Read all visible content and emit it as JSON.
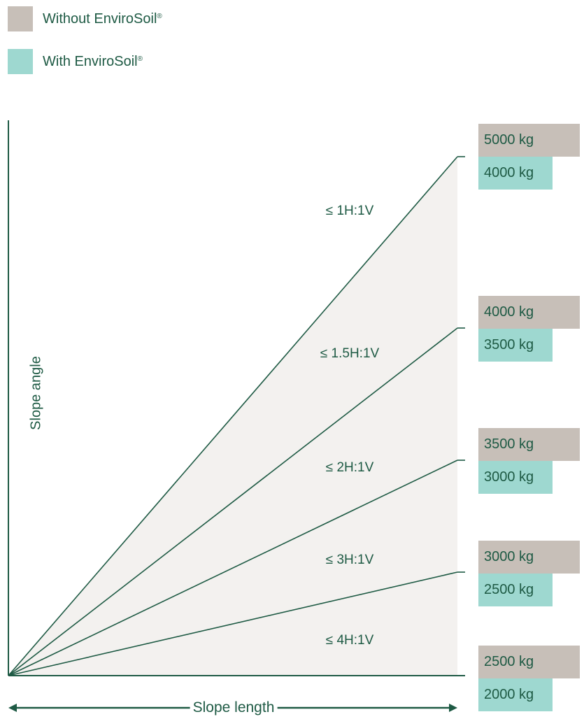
{
  "legend": [
    {
      "label": "Without EnviroSoil",
      "mark": "®",
      "color": "#c7bfb8"
    },
    {
      "label": "With EnviroSoil",
      "mark": "®",
      "color": "#9ed8d0"
    }
  ],
  "colors": {
    "line": "#1e5a44",
    "shade": "#f3f1ef",
    "without": "#c7bfb8",
    "with": "#9ed8d0"
  },
  "chart_data": {
    "type": "line",
    "xlabel": "Slope length",
    "ylabel": "Slope angle",
    "slopes": [
      {
        "label": "≤ 1H:1V",
        "ratio": 1,
        "without_label": "5000 kg",
        "with_label": "4000 kg",
        "without_kg": 5000,
        "with_kg": 4000
      },
      {
        "label": "≤ 1.5H:1V",
        "ratio": 1.5,
        "without_label": "4000 kg",
        "with_label": "3500 kg",
        "without_kg": 4000,
        "with_kg": 3500
      },
      {
        "label": "≤ 2H:1V",
        "ratio": 2,
        "without_label": "3500 kg",
        "with_label": "3000 kg",
        "without_kg": 3500,
        "with_kg": 3000
      },
      {
        "label": "≤ 3H:1V",
        "ratio": 3,
        "without_label": "3000 kg",
        "with_label": "2500 kg",
        "without_kg": 3000,
        "with_kg": 2500
      },
      {
        "label": "≤ 4H:1V",
        "ratio": 4,
        "without_label": "2500 kg",
        "with_label": "2000 kg",
        "without_kg": 2500,
        "with_kg": 2000
      }
    ]
  }
}
